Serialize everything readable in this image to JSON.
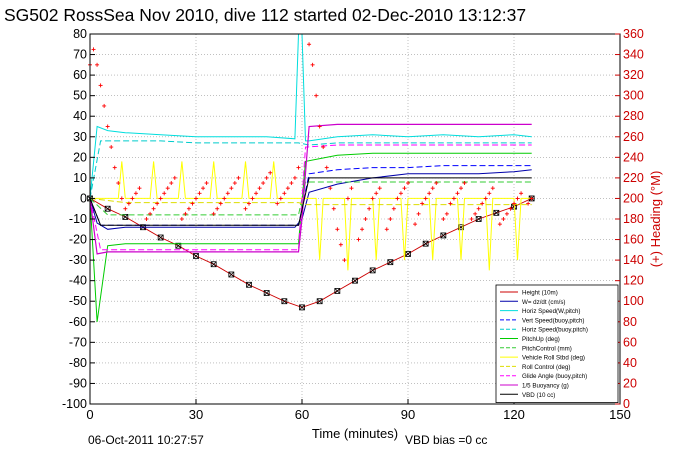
{
  "figure": {
    "title": "SG502 RossSea Nov 2010, dive 112 started 02-Dec-2010 13:12:37",
    "footer_date": "06-Oct-2011 10:27:57",
    "footer_bias": "VBD bias =0 cc"
  },
  "colors": {
    "height": "#cc0000",
    "w": "#0000aa",
    "horz_speed": "#00dddd",
    "vert_speed_buoy": "#0000ff",
    "horz_speed_buoy": "#00cccc",
    "pitch_up": "#00cc00",
    "pitch_control": "#33cc33",
    "vehicle_roll": "#ffff00",
    "roll_control": "#dddd00",
    "glide_angle": "#ff00ff",
    "buoyancy": "#cc00cc",
    "vbd": "#000000",
    "heading": "#ff0000",
    "right_axis": "#cc0000"
  },
  "chart_data": {
    "type": "line",
    "title": "SG502 RossSea Nov 2010, dive 112 started 02-Dec-2010 13:12:37",
    "xlabel": "Time (minutes)",
    "ylabel_right": "(+) Heading (°M)",
    "xlim": [
      0,
      150
    ],
    "ylim": [
      -100,
      80
    ],
    "ylim_right": [
      0,
      360
    ],
    "xticks": [
      0,
      30,
      60,
      90,
      120,
      150
    ],
    "yticks": [
      -100,
      -90,
      -80,
      -70,
      -60,
      -50,
      -40,
      -30,
      -20,
      -10,
      0,
      10,
      20,
      30,
      40,
      50,
      60,
      70,
      80
    ],
    "yticks_right": [
      0,
      20,
      40,
      60,
      80,
      100,
      120,
      140,
      160,
      180,
      200,
      220,
      240,
      260,
      280,
      300,
      320,
      340,
      360
    ],
    "grid": true,
    "legend_position": "bottom-right",
    "series": [
      {
        "name": "Height (10m)",
        "key": "height",
        "x": [
          0,
          5,
          10,
          15,
          20,
          25,
          30,
          35,
          40,
          45,
          50,
          55,
          60,
          65,
          70,
          75,
          80,
          85,
          90,
          95,
          100,
          105,
          110,
          115,
          120,
          125
        ],
        "y": [
          0,
          -5,
          -9,
          -14,
          -19,
          -23,
          -28,
          -32,
          -37,
          -42,
          -46,
          -50,
          -53,
          -50,
          -45,
          -40,
          -35,
          -31,
          -27,
          -22,
          -18,
          -14,
          -10,
          -7,
          -4,
          0
        ]
      },
      {
        "name": "W= dz/dt (cm/s)",
        "key": "w",
        "x": [
          0,
          2,
          5,
          10,
          20,
          30,
          40,
          50,
          58,
          60,
          62,
          70,
          80,
          90,
          100,
          110,
          120,
          125
        ],
        "y": [
          0,
          -12,
          -15,
          -14,
          -14,
          -14,
          -14,
          -14,
          -14,
          -10,
          3,
          7,
          10,
          12,
          12,
          12,
          13,
          14
        ]
      },
      {
        "name": "Horiz Speed(W,pitch)",
        "key": "horz_speed",
        "x": [
          0,
          2,
          5,
          10,
          20,
          30,
          40,
          50,
          58,
          59,
          60,
          61,
          62,
          70,
          80,
          90,
          100,
          110,
          120,
          125
        ],
        "y": [
          0,
          35,
          33,
          32,
          31,
          30,
          30,
          30,
          29,
          80,
          80,
          28,
          28,
          30,
          31,
          30,
          31,
          30,
          31,
          30
        ]
      },
      {
        "name": "Vert Speed(buoy,pitch)",
        "key": "vert_speed_buoy",
        "x": [
          0,
          3,
          10,
          20,
          30,
          40,
          50,
          59,
          62,
          70,
          80,
          90,
          100,
          110,
          120,
          125
        ],
        "y": [
          0,
          -13,
          -13,
          -13,
          -13,
          -13,
          -13,
          -13,
          12,
          14,
          15,
          15,
          16,
          16,
          16,
          16
        ]
      },
      {
        "name": "Horiz Speed(buoy,pitch)",
        "key": "horz_speed_buoy",
        "x": [
          0,
          3,
          10,
          20,
          30,
          40,
          50,
          59,
          62,
          70,
          80,
          90,
          100,
          110,
          120,
          125
        ],
        "y": [
          0,
          28,
          28,
          28,
          27,
          27,
          27,
          27,
          26,
          27,
          27,
          27,
          27,
          27,
          27,
          27
        ]
      },
      {
        "name": "PitchUp (deg)",
        "key": "pitch_up",
        "x": [
          0,
          2,
          5,
          10,
          20,
          30,
          40,
          50,
          59,
          61,
          70,
          80,
          90,
          100,
          110,
          120,
          125
        ],
        "y": [
          0,
          -60,
          -23,
          -22,
          -22,
          -22,
          -22,
          -22,
          -22,
          18,
          21,
          22,
          22,
          22,
          22,
          22,
          22
        ]
      },
      {
        "name": "PitchControl (mm)",
        "key": "pitch_control",
        "x": [
          0,
          5,
          10,
          20,
          30,
          40,
          50,
          59,
          61,
          70,
          80,
          90,
          100,
          110,
          120,
          125
        ],
        "y": [
          0,
          -8,
          -8,
          -8,
          -8,
          -8,
          -8,
          -8,
          8,
          8,
          8,
          8,
          8,
          8,
          8,
          8
        ]
      },
      {
        "name": "Vehicle Roll Stbd (deg)",
        "key": "vehicle_roll",
        "x": [
          0,
          8,
          9,
          10,
          17,
          18,
          19,
          25,
          26,
          27,
          34,
          35,
          36,
          43,
          44,
          45,
          51,
          52,
          53,
          57,
          59,
          64,
          65,
          66,
          72,
          73,
          74,
          80,
          81,
          82,
          88,
          89,
          90,
          96,
          97,
          98,
          104,
          105,
          106,
          112,
          113,
          114,
          120,
          121,
          122,
          125
        ],
        "y": [
          0,
          0,
          18,
          0,
          0,
          18,
          0,
          0,
          18,
          0,
          0,
          18,
          0,
          0,
          18,
          0,
          0,
          18,
          0,
          0,
          0,
          0,
          -30,
          0,
          0,
          -35,
          0,
          0,
          -30,
          0,
          0,
          -30,
          0,
          0,
          -30,
          0,
          0,
          -30,
          0,
          0,
          -35,
          0,
          0,
          -30,
          0,
          0
        ]
      },
      {
        "name": "Roll Control (deg)",
        "key": "roll_control",
        "x": [
          0,
          10,
          20,
          30,
          40,
          50,
          59,
          61,
          70,
          80,
          90,
          100,
          110,
          120,
          125
        ],
        "y": [
          0,
          -2,
          -2,
          -2,
          -2,
          -2,
          -2,
          -3,
          -3,
          -3,
          -3,
          -3,
          -3,
          -3,
          -3
        ]
      },
      {
        "name": "Glide Angle (buoy,pitch)",
        "key": "glide_angle",
        "x": [
          0,
          3,
          10,
          20,
          30,
          40,
          50,
          59,
          61,
          70,
          80,
          90,
          100,
          110,
          120,
          125
        ],
        "y": [
          0,
          -25,
          -25,
          -25,
          -25,
          -25,
          -25,
          -25,
          25,
          26,
          26,
          26,
          26,
          26,
          26,
          26
        ]
      },
      {
        "name": "1/5 Buoyancy (g)",
        "key": "buoyancy",
        "x": [
          0,
          2,
          5,
          10,
          20,
          30,
          40,
          50,
          59,
          60,
          62,
          70,
          80,
          90,
          100,
          110,
          120,
          125
        ],
        "y": [
          0,
          -27,
          -26,
          -26,
          -26,
          -26,
          -26,
          -26,
          -26,
          -10,
          35,
          36,
          36,
          36,
          36,
          36,
          36,
          36
        ]
      },
      {
        "name": "VBD (10 cc)",
        "key": "vbd",
        "x": [
          0,
          3,
          10,
          20,
          30,
          40,
          50,
          59,
          62,
          70,
          80,
          90,
          100,
          110,
          120,
          125
        ],
        "y": [
          0,
          -13,
          -13,
          -13,
          -13,
          -13,
          -13,
          -13,
          10,
          10,
          10,
          10,
          10,
          10,
          10,
          10
        ]
      }
    ],
    "heading": {
      "axis": "right",
      "x": [
        0,
        1,
        2,
        3,
        4,
        5,
        6,
        7,
        8,
        9,
        10,
        11,
        12,
        13,
        14,
        16,
        17,
        18,
        19,
        20,
        21,
        22,
        23,
        24,
        26,
        27,
        28,
        29,
        30,
        31,
        32,
        33,
        35,
        36,
        37,
        38,
        39,
        40,
        41,
        42,
        44,
        45,
        46,
        47,
        48,
        49,
        50,
        51,
        53,
        54,
        55,
        56,
        57,
        58,
        59,
        62,
        63,
        64,
        65,
        66,
        67,
        68,
        69,
        70,
        71,
        72,
        73,
        74,
        76,
        77,
        78,
        79,
        80,
        81,
        82,
        84,
        85,
        86,
        87,
        88,
        89,
        90,
        92,
        93,
        94,
        95,
        96,
        97,
        98,
        100,
        101,
        102,
        103,
        104,
        105,
        106,
        108,
        109,
        110,
        111,
        112,
        113,
        114,
        116,
        117,
        118,
        119,
        120,
        121,
        122,
        124,
        125
      ],
      "y": [
        330,
        345,
        330,
        310,
        290,
        270,
        250,
        230,
        215,
        200,
        190,
        195,
        200,
        205,
        210,
        180,
        185,
        190,
        195,
        200,
        205,
        210,
        215,
        220,
        180,
        185,
        190,
        195,
        200,
        205,
        210,
        215,
        185,
        190,
        195,
        200,
        205,
        210,
        215,
        220,
        190,
        195,
        200,
        205,
        210,
        215,
        220,
        225,
        195,
        200,
        205,
        210,
        215,
        220,
        230,
        350,
        330,
        300,
        270,
        250,
        230,
        210,
        190,
        170,
        155,
        140,
        200,
        210,
        160,
        170,
        180,
        190,
        200,
        205,
        210,
        170,
        180,
        190,
        200,
        205,
        210,
        215,
        175,
        185,
        195,
        200,
        205,
        210,
        215,
        180,
        185,
        195,
        200,
        205,
        210,
        215,
        180,
        185,
        190,
        195,
        200,
        205,
        210,
        175,
        180,
        185,
        190,
        195,
        200,
        205,
        195,
        200
      ]
    }
  }
}
